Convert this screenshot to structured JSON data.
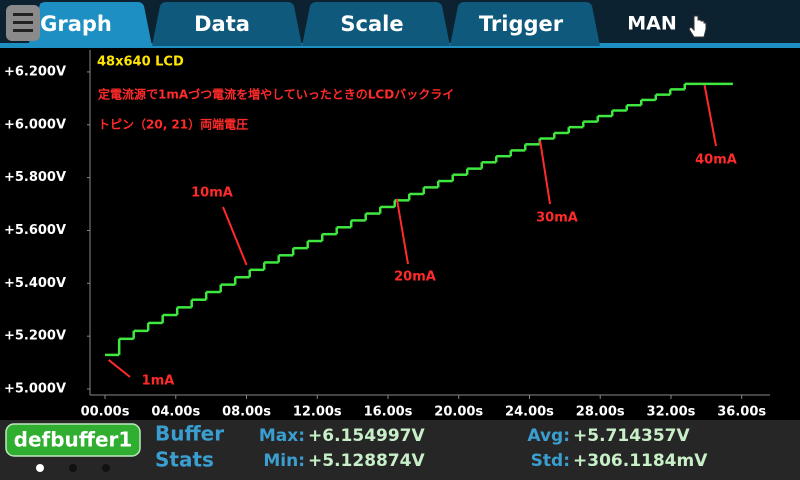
{
  "tabs": [
    "Graph",
    "Data",
    "Scale",
    "Trigger"
  ],
  "range_mode": "MAN",
  "chart_data": {
    "type": "line",
    "title": "48x640 LCD",
    "notes": [
      "定電流源で1mAづつ電流を増やしていったときのLCDバックライ",
      "トピン（20, 21）両端電圧"
    ],
    "step": "post",
    "color": "#3fe83f",
    "x": [
      0,
      0.8,
      1.62,
      2.44,
      3.26,
      4.08,
      4.9,
      5.72,
      6.54,
      7.36,
      8.18,
      9.0,
      9.82,
      10.64,
      11.46,
      12.28,
      13.1,
      13.92,
      14.74,
      15.56,
      16.38,
      17.2,
      18.02,
      18.84,
      19.66,
      20.48,
      21.3,
      22.12,
      22.94,
      23.76,
      24.58,
      25.4,
      26.22,
      27.04,
      27.86,
      28.68,
      29.5,
      30.32,
      31.14,
      31.96,
      32.78,
      35.5
    ],
    "values": [
      5.129,
      5.19,
      5.22,
      5.25,
      5.28,
      5.309,
      5.338,
      5.367,
      5.395,
      5.423,
      5.451,
      5.479,
      5.506,
      5.533,
      5.56,
      5.586,
      5.612,
      5.638,
      5.664,
      5.689,
      5.714,
      5.738,
      5.763,
      5.787,
      5.811,
      5.834,
      5.858,
      5.881,
      5.903,
      5.926,
      5.948,
      5.969,
      5.991,
      6.012,
      6.033,
      6.054,
      6.074,
      6.094,
      6.114,
      6.134,
      6.155,
      6.155
    ],
    "xlim": [
      -0.85,
      37.6
    ],
    "ylim": [
      5.0,
      6.283
    ],
    "xticks": [
      {
        "value": 0,
        "label": "00.00s"
      },
      {
        "value": 4,
        "label": "04.00s"
      },
      {
        "value": 8,
        "label": "08.00s"
      },
      {
        "value": 12,
        "label": "12.00s"
      },
      {
        "value": 16,
        "label": "16.00s"
      },
      {
        "value": 20,
        "label": "20.00s"
      },
      {
        "value": 24,
        "label": "24.00s"
      },
      {
        "value": 28,
        "label": "28.00s"
      },
      {
        "value": 32,
        "label": "32.00s"
      },
      {
        "value": 36,
        "label": "36.00s"
      }
    ],
    "yticks": [
      {
        "value": 5.0,
        "label": "+5.000V"
      },
      {
        "value": 5.2,
        "label": "+5.200V"
      },
      {
        "value": 5.4,
        "label": "+5.400V"
      },
      {
        "value": 5.6,
        "label": "+5.600V"
      },
      {
        "value": 5.8,
        "label": "+5.800V"
      },
      {
        "value": 6.0,
        "label": "+6.000V"
      },
      {
        "value": 6.2,
        "label": "+6.200V"
      }
    ],
    "grid": false,
    "annotation_color": "#ff2a2a",
    "annotations": [
      {
        "text": "1mA",
        "x": 0.2,
        "y": 5.11
      },
      {
        "text": "10mA",
        "x": 8.0,
        "y": 5.47
      },
      {
        "text": "20mA",
        "x": 16.5,
        "y": 5.72
      },
      {
        "text": "30mA",
        "x": 24.6,
        "y": 5.94
      },
      {
        "text": "40mA",
        "x": 33.9,
        "y": 6.15
      }
    ]
  },
  "footer": {
    "buffer": "defbuffer1",
    "labels": [
      "Buffer",
      "Stats"
    ],
    "stats": [
      {
        "label": "Max:",
        "value": "+6.154997V"
      },
      {
        "label": "Min:",
        "value": "+5.128874V"
      },
      {
        "label": "Avg:",
        "value": "+5.714357V"
      },
      {
        "label": "Std:",
        "value": "+306.1184mV"
      }
    ]
  }
}
